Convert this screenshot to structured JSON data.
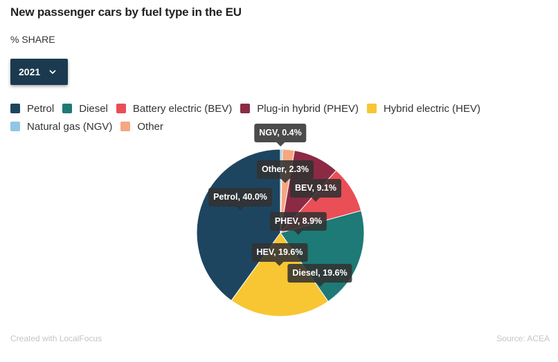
{
  "header": {
    "title": "New passenger cars by fuel type in the EU",
    "subtitle": "% SHARE"
  },
  "year_select": {
    "value": "2021"
  },
  "colors": {
    "petrol": "#1e4560",
    "diesel": "#1e7a76",
    "bev": "#ea4e57",
    "phev": "#8c2a44",
    "hev": "#f8c633",
    "ngv": "#91c6e6",
    "other": "#f5a782",
    "tooltip_bg": "#333333",
    "select_bg": "#1b3a4f"
  },
  "legend": {
    "row1": [
      {
        "label": "Petrol",
        "color": "#1e4560"
      },
      {
        "label": "Diesel",
        "color": "#1e7a76"
      },
      {
        "label": "Battery electric (BEV)",
        "color": "#ea4e57"
      },
      {
        "label": "Plug-in hybrid (PHEV)",
        "color": "#8c2a44"
      },
      {
        "label": "Hybrid electric (HEV)",
        "color": "#f8c633"
      }
    ],
    "row2": [
      {
        "label": "Natural gas (NGV)",
        "color": "#91c6e6"
      },
      {
        "label": "Other",
        "color": "#f5a782"
      }
    ]
  },
  "chart_data": {
    "type": "pie",
    "title": "New passenger cars by fuel type in the EU",
    "subtitle": "% SHARE",
    "slice_order": [
      "NGV",
      "Other",
      "PHEV",
      "BEV",
      "Diesel",
      "HEV",
      "Petrol"
    ],
    "slices": [
      {
        "label": "NGV",
        "value": 0.4,
        "color": "#91c6e6",
        "tooltip": "NGV, 0.4%"
      },
      {
        "label": "Other",
        "value": 2.3,
        "color": "#f5a782",
        "tooltip": "Other, 2.3%"
      },
      {
        "label": "PHEV",
        "value": 8.9,
        "color": "#8c2a44",
        "tooltip": "PHEV, 8.9%"
      },
      {
        "label": "BEV",
        "value": 9.1,
        "color": "#ea4e57",
        "tooltip": "BEV, 9.1%"
      },
      {
        "label": "Diesel",
        "value": 19.6,
        "color": "#1e7a76",
        "tooltip": "Diesel, 19.6%"
      },
      {
        "label": "HEV",
        "value": 19.6,
        "color": "#f8c633",
        "tooltip": "HEV, 19.6%"
      },
      {
        "label": "Petrol",
        "value": 40.0,
        "color": "#1e4560",
        "tooltip": "Petrol, 40.0%"
      }
    ]
  },
  "footer": {
    "credit": "Created with LocalFocus",
    "source": "Source: ACEA"
  }
}
